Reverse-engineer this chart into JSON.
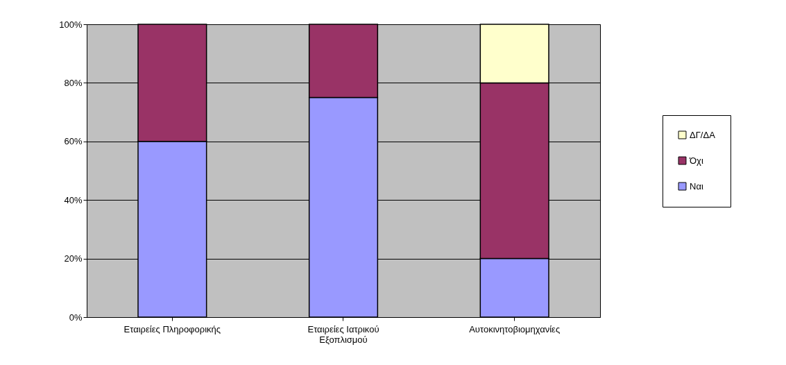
{
  "chart_data": {
    "type": "bar",
    "stacked": true,
    "categories": [
      "Εταιρείες Πληροφορικής",
      "Εταιρείες Ιατρικού Εξοπλισμού",
      "Αυτοκινητοβιομηχανίες"
    ],
    "series": [
      {
        "name": "Ναι",
        "color": "#9999ff",
        "values": [
          60,
          75,
          20
        ]
      },
      {
        "name": "Όχι",
        "color": "#993366",
        "values": [
          40,
          25,
          60
        ]
      },
      {
        "name": "ΔΓ/ΔΑ",
        "color": "#ffffcc",
        "values": [
          null,
          null,
          20
        ]
      }
    ],
    "ylim": [
      0,
      100
    ],
    "yticks": [
      {
        "value": 0,
        "label": "0%"
      },
      {
        "value": 20,
        "label": "20%"
      },
      {
        "value": 40,
        "label": "40%"
      },
      {
        "value": 60,
        "label": "60%"
      },
      {
        "value": 80,
        "label": "80%"
      },
      {
        "value": 100,
        "label": "100%"
      }
    ],
    "grid": "y",
    "legend": "right"
  }
}
